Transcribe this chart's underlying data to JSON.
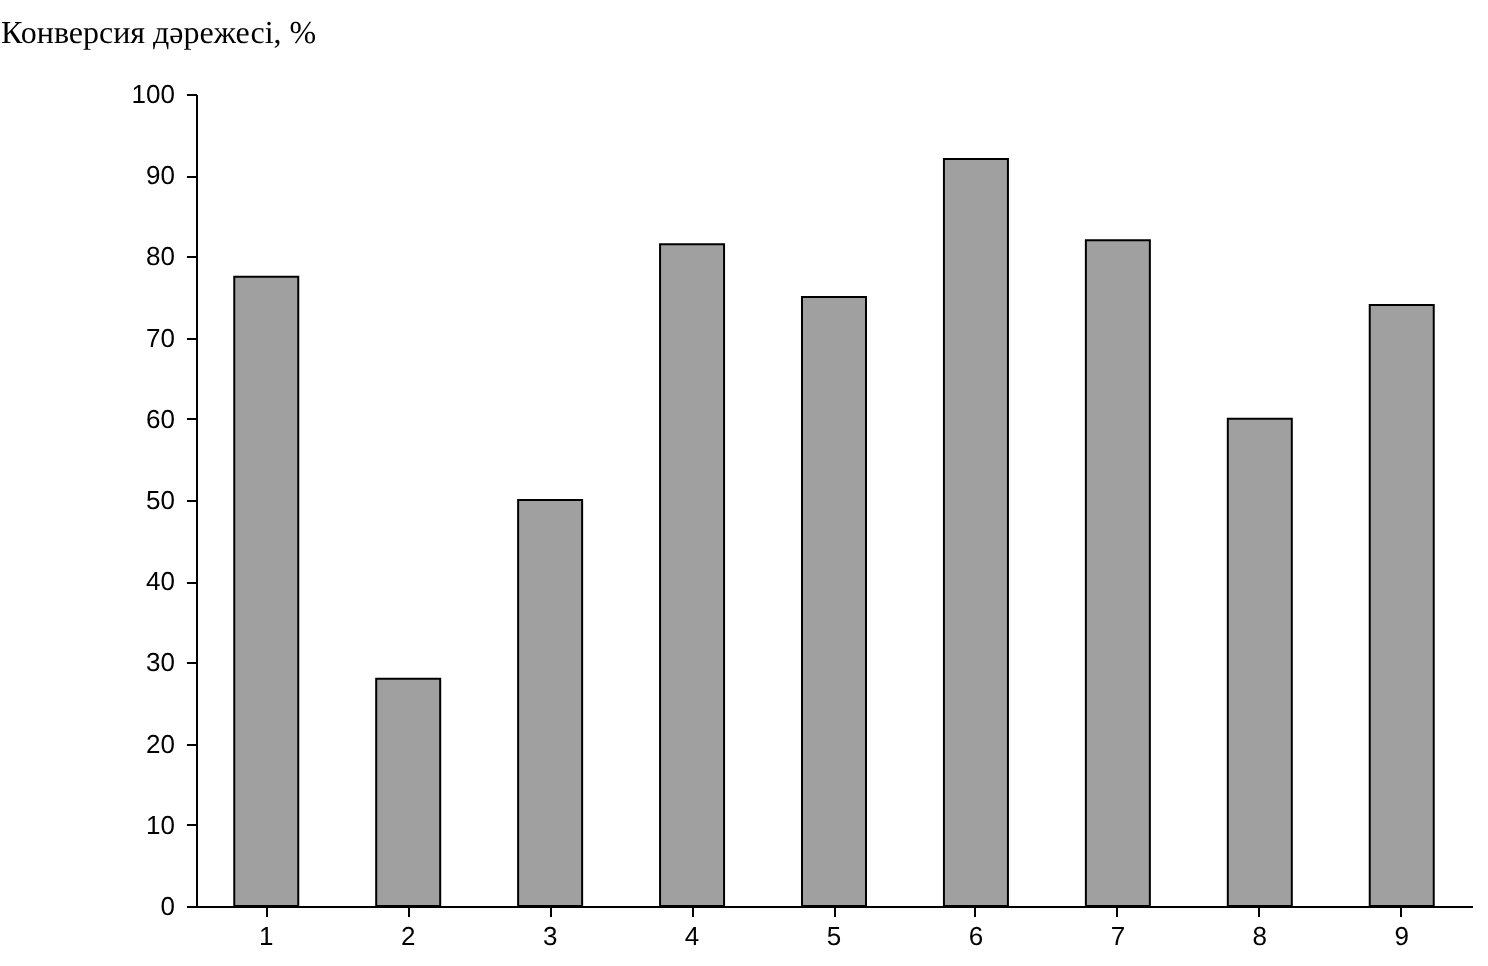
{
  "chart_data": {
    "type": "bar",
    "ylabel": "Конверсия дәрежесі, %",
    "categories": [
      "1",
      "2",
      "3",
      "4",
      "5",
      "6",
      "7",
      "8",
      "9"
    ],
    "values": [
      77.5,
      28,
      50,
      81.5,
      75,
      92,
      82,
      60,
      74
    ],
    "color": "#a0a0a0",
    "ylim": [
      0,
      100
    ],
    "yticks": [
      0,
      10,
      20,
      30,
      40,
      50,
      60,
      70,
      80,
      90,
      100
    ],
    "grid": false
  }
}
